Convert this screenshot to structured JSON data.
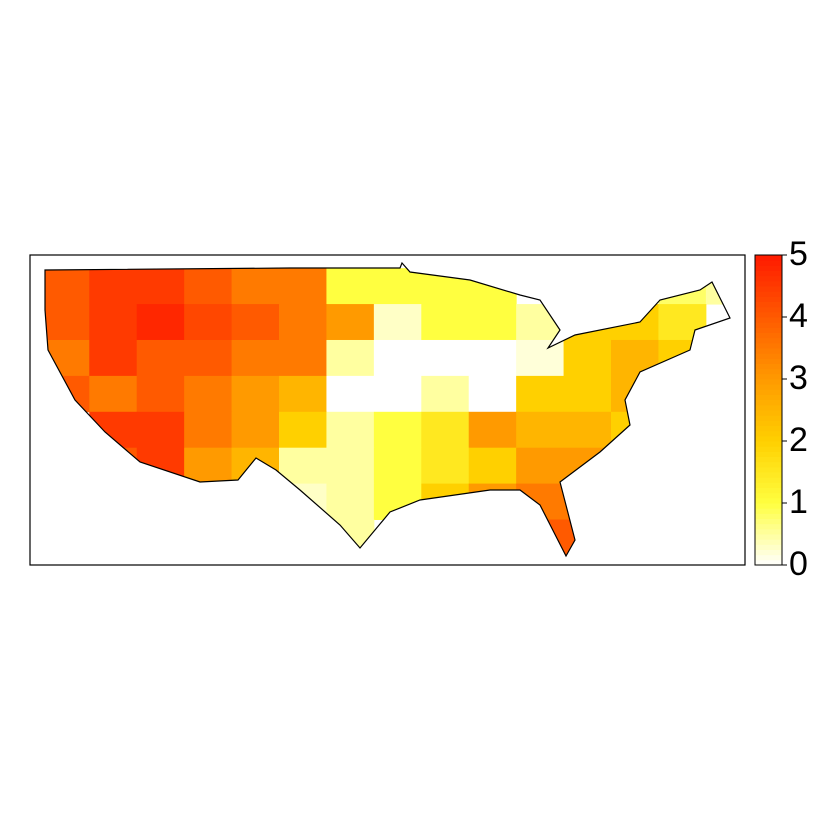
{
  "chart_data": {
    "type": "grid-map",
    "x": [
      -123,
      -119,
      -115,
      -111,
      -107,
      -103,
      -99,
      -95,
      -91,
      -87,
      -83,
      -79,
      -75,
      -71,
      -67
    ],
    "y": [
      47.5,
      44.5,
      41.5,
      38.5,
      35.5,
      32.5,
      29.5,
      26.5
    ],
    "values": [
      [
        4,
        4.5,
        4.5,
        4,
        3.5,
        3.5,
        1,
        1,
        1,
        1,
        null,
        null,
        null,
        0.8,
        0.5
      ],
      [
        4,
        4.5,
        4.8,
        4.3,
        4,
        3.5,
        3,
        0.3,
        1,
        1,
        0.5,
        2,
        2,
        1.5,
        null
      ],
      [
        3.5,
        4.5,
        4,
        4,
        3.5,
        3.5,
        0.5,
        0,
        0,
        0,
        0.2,
        2,
        2.5,
        2,
        null
      ],
      [
        4,
        3.5,
        4,
        3.5,
        3,
        2.5,
        0,
        0,
        0.5,
        0,
        2,
        2,
        2.5,
        null,
        null
      ],
      [
        null,
        4.5,
        4.5,
        3.5,
        3,
        2,
        0.5,
        1,
        1.5,
        3,
        2.5,
        2.5,
        2,
        null,
        null
      ],
      [
        null,
        4,
        4.5,
        3,
        2.5,
        0.5,
        0.5,
        1,
        1.5,
        2,
        3,
        3,
        null,
        null,
        null
      ],
      [
        null,
        null,
        null,
        null,
        null,
        0.3,
        0.5,
        1,
        2,
        3,
        3.5,
        3.5,
        null,
        null,
        null
      ],
      [
        null,
        null,
        null,
        null,
        null,
        null,
        0.5,
        null,
        null,
        null,
        4,
        4,
        null,
        null,
        null
      ]
    ],
    "xlim": [
      -126,
      -65.7
    ],
    "ylim": [
      24.2,
      50.1
    ],
    "clim": [
      0,
      5
    ],
    "cticks": [
      0,
      1,
      2,
      3,
      4,
      5
    ],
    "colors": [
      "#ffffff",
      "#ffff40",
      "#ffd000",
      "#ff9a00",
      "#ff5a00",
      "#ff1a00"
    ]
  }
}
